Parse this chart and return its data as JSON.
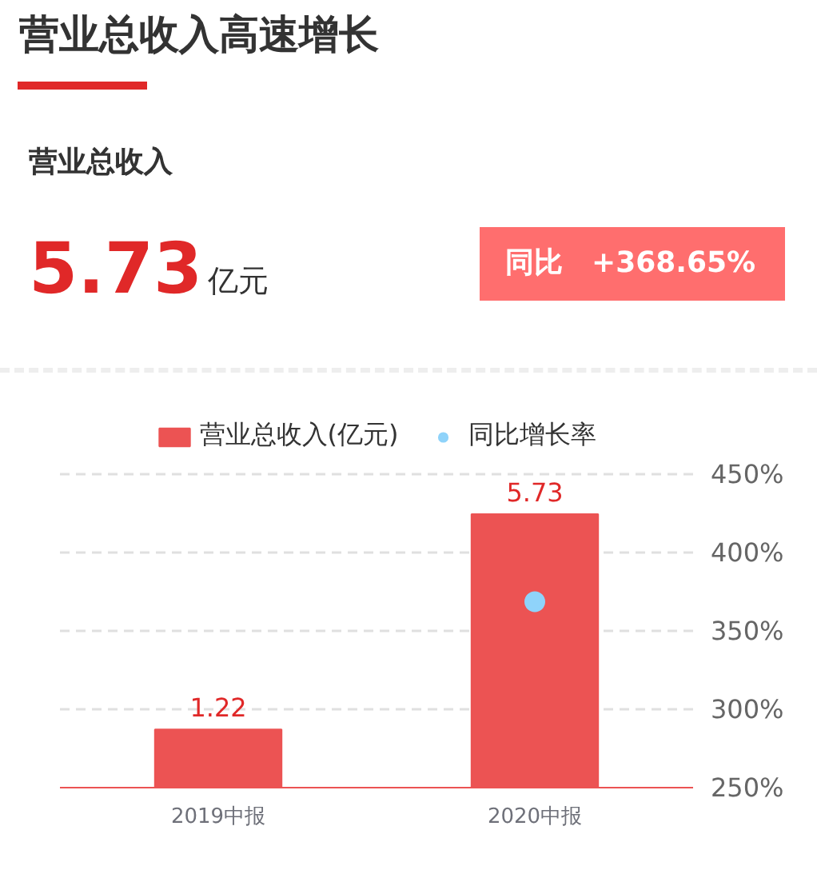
{
  "chart_data": {
    "type": "bar",
    "title": "营业总收入高速增长",
    "subtitle": "营业总收入",
    "annotations": [
      "5.73",
      "亿元",
      "同比",
      "+368.65%"
    ],
    "categories": [
      "2019中报",
      "2020中报"
    ],
    "series": [
      {
        "name": "营业总收入(亿元)",
        "color": "#ec5353",
        "values": [
          1.22,
          5.73
        ],
        "value_labels": [
          "1.22",
          "5.73"
        ]
      },
      {
        "name": "同比增长率",
        "type": "scatter",
        "axis": "y2",
        "color": "#8fd3fa",
        "values": [
          null,
          368.65
        ]
      }
    ],
    "y2lim": [
      250,
      450
    ],
    "y2ticks": [
      {
        "value": 250,
        "label": "250%"
      },
      {
        "value": 300,
        "label": "300%"
      },
      {
        "value": 350,
        "label": "350%"
      },
      {
        "value": 400,
        "label": "400%"
      },
      {
        "value": 450,
        "label": "450%"
      }
    ],
    "grid": "y2",
    "legend": "top",
    "marker": "circle"
  }
}
